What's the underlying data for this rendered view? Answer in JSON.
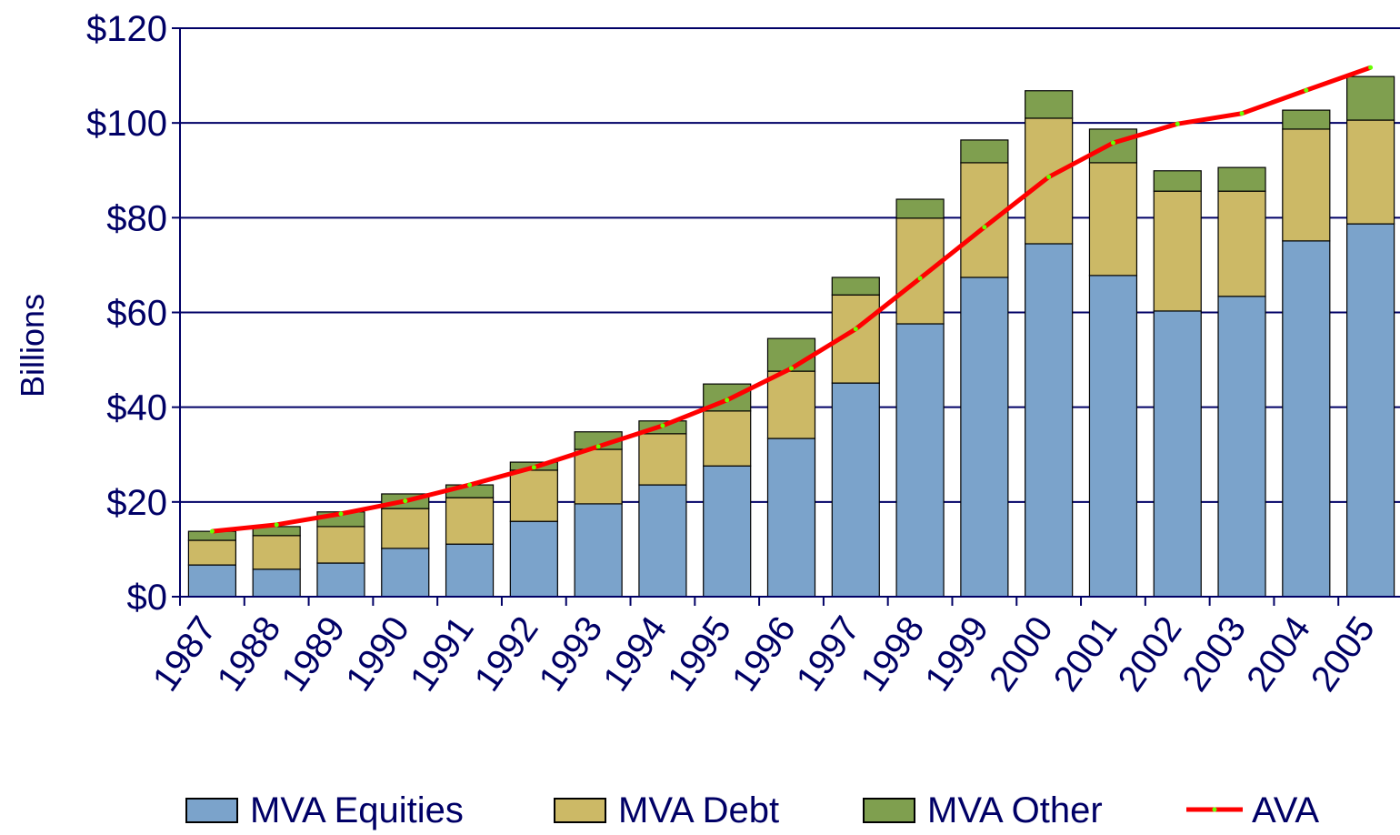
{
  "chart_data": {
    "type": "bar",
    "stacked": true,
    "y_label": "Billions",
    "categories": [
      "1987",
      "1988",
      "1989",
      "1990",
      "1991",
      "1992",
      "1993",
      "1994",
      "1995",
      "1996",
      "1997",
      "1998",
      "1999",
      "2000",
      "2001",
      "2002",
      "2003",
      "2004",
      "2005"
    ],
    "series": [
      {
        "name": "MVA Equities",
        "color": "#7ba3cb",
        "values": [
          6.7,
          5.8,
          7.1,
          10.2,
          11.1,
          15.9,
          19.6,
          23.6,
          27.6,
          33.4,
          45.1,
          57.6,
          67.4,
          74.5,
          67.8,
          60.3,
          63.4,
          75.1,
          78.7
        ]
      },
      {
        "name": "MVA Debt",
        "color": "#ccb966",
        "values": [
          5.2,
          7.1,
          7.7,
          8.4,
          9.8,
          10.8,
          11.5,
          10.8,
          11.6,
          14.2,
          18.6,
          22.3,
          24.2,
          26.5,
          23.8,
          25.3,
          22.2,
          23.6,
          21.9
        ]
      },
      {
        "name": "MVA Other",
        "color": "#7f9f4f",
        "values": [
          1.9,
          1.9,
          3.1,
          3.1,
          2.7,
          1.7,
          3.7,
          2.7,
          5.7,
          6.9,
          3.7,
          4.0,
          4.8,
          5.8,
          7.1,
          4.3,
          5.0,
          4.0,
          9.2
        ]
      },
      {
        "name": "AVA",
        "type": "line",
        "color": "#ff0000",
        "marker_color": "#66ff00",
        "values": [
          13.8,
          15.2,
          17.5,
          20.2,
          23.6,
          27.3,
          31.7,
          36.1,
          41.5,
          48.2,
          56.5,
          67.2,
          78.0,
          88.6,
          95.8,
          99.8,
          102.0,
          106.9,
          111.7
        ]
      }
    ],
    "ylim": [
      0,
      120
    ],
    "yticks": [
      {
        "value": 0,
        "label": "$0"
      },
      {
        "value": 20,
        "label": "$20"
      },
      {
        "value": 40,
        "label": "$40"
      },
      {
        "value": 60,
        "label": "$60"
      },
      {
        "value": 80,
        "label": "$80"
      },
      {
        "value": 100,
        "label": "$100"
      },
      {
        "value": 120,
        "label": "$120"
      }
    ],
    "grid": true,
    "legend": "bottom"
  }
}
